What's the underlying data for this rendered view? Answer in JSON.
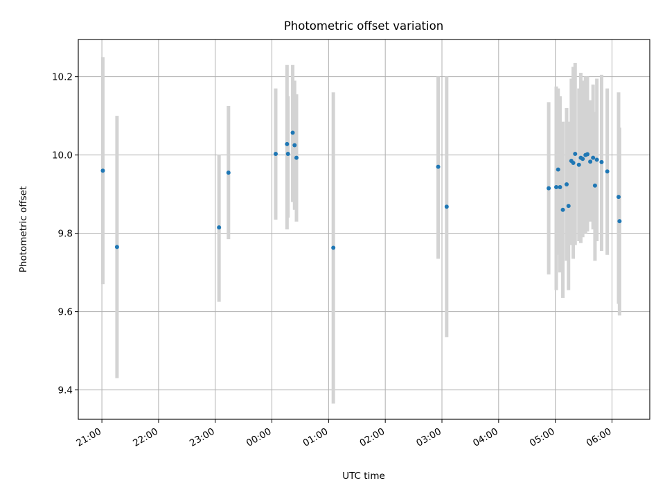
{
  "chart_data": {
    "type": "scatter",
    "title": "Photometric offset variation",
    "xlabel": "UTC time",
    "ylabel": "Photometric offset",
    "x_ticks": [
      "21:00",
      "22:00",
      "23:00",
      "00:00",
      "01:00",
      "02:00",
      "03:00",
      "04:00",
      "05:00",
      "06:00"
    ],
    "y_ticks": [
      "9.4",
      "9.6",
      "9.8",
      "10.0",
      "10.2"
    ],
    "xlim": [
      "20:35",
      "06:40"
    ],
    "ylim": [
      9.325,
      10.295
    ],
    "grid": true,
    "colors": {
      "point": "#1f77b4",
      "errorbar": "#d3d3d3",
      "grid": "#b0b0b0"
    },
    "points": [
      {
        "time": "21:01",
        "y": 9.96,
        "err_low": 9.67,
        "err_high": 10.25
      },
      {
        "time": "21:16",
        "y": 9.765,
        "err_low": 9.43,
        "err_high": 10.1
      },
      {
        "time": "23:04",
        "y": 9.815,
        "err_low": 9.625,
        "err_high": 10.0
      },
      {
        "time": "23:14",
        "y": 9.955,
        "err_low": 9.785,
        "err_high": 10.125
      },
      {
        "time": "00:04",
        "y": 10.003,
        "err_low": 9.835,
        "err_high": 10.17
      },
      {
        "time": "00:16",
        "y": 10.028,
        "err_low": 9.81,
        "err_high": 10.23
      },
      {
        "time": "00:17",
        "y": 10.003,
        "err_low": 9.84,
        "err_high": 10.15
      },
      {
        "time": "00:22",
        "y": 10.057,
        "err_low": 9.88,
        "err_high": 10.23
      },
      {
        "time": "00:24",
        "y": 10.025,
        "err_low": 9.86,
        "err_high": 10.19
      },
      {
        "time": "00:26",
        "y": 9.993,
        "err_low": 9.83,
        "err_high": 10.155
      },
      {
        "time": "01:05",
        "y": 9.763,
        "err_low": 9.365,
        "err_high": 10.16
      },
      {
        "time": "02:56",
        "y": 9.97,
        "err_low": 9.735,
        "err_high": 10.2
      },
      {
        "time": "03:05",
        "y": 9.868,
        "err_low": 9.535,
        "err_high": 10.2
      },
      {
        "time": "04:53",
        "y": 9.915,
        "err_low": 9.695,
        "err_high": 10.135
      },
      {
        "time": "05:01",
        "y": 9.918,
        "err_low": 9.655,
        "err_high": 10.175
      },
      {
        "time": "05:03",
        "y": 9.963,
        "err_low": 9.745,
        "err_high": 10.17
      },
      {
        "time": "05:05",
        "y": 9.918,
        "err_low": 9.7,
        "err_high": 10.15
      },
      {
        "time": "05:08",
        "y": 9.86,
        "err_low": 9.635,
        "err_high": 10.085
      },
      {
        "time": "05:12",
        "y": 9.925,
        "err_low": 9.73,
        "err_high": 10.12
      },
      {
        "time": "05:14",
        "y": 9.87,
        "err_low": 9.655,
        "err_high": 10.085
      },
      {
        "time": "05:17",
        "y": 9.985,
        "err_low": 9.77,
        "err_high": 10.195
      },
      {
        "time": "05:19",
        "y": 9.98,
        "err_low": 9.735,
        "err_high": 10.225
      },
      {
        "time": "05:21",
        "y": 10.003,
        "err_low": 9.77,
        "err_high": 10.235
      },
      {
        "time": "05:25",
        "y": 9.975,
        "err_low": 9.78,
        "err_high": 10.17
      },
      {
        "time": "05:27",
        "y": 9.993,
        "err_low": 9.775,
        "err_high": 10.21
      },
      {
        "time": "05:29",
        "y": 9.99,
        "err_low": 9.79,
        "err_high": 10.19
      },
      {
        "time": "05:32",
        "y": 10.0,
        "err_low": 9.8,
        "err_high": 10.2
      },
      {
        "time": "05:34",
        "y": 10.002,
        "err_low": 9.805,
        "err_high": 10.2
      },
      {
        "time": "05:37",
        "y": 9.983,
        "err_low": 9.83,
        "err_high": 10.14
      },
      {
        "time": "05:40",
        "y": 9.993,
        "err_low": 9.81,
        "err_high": 10.18
      },
      {
        "time": "05:42",
        "y": 9.922,
        "err_low": 9.73,
        "err_high": 10.11
      },
      {
        "time": "05:44",
        "y": 9.988,
        "err_low": 9.78,
        "err_high": 10.195
      },
      {
        "time": "05:49",
        "y": 9.982,
        "err_low": 9.755,
        "err_high": 10.205
      },
      {
        "time": "05:55",
        "y": 9.958,
        "err_low": 9.745,
        "err_high": 10.17
      },
      {
        "time": "06:07",
        "y": 9.893,
        "err_low": 9.62,
        "err_high": 10.16
      },
      {
        "time": "06:08",
        "y": 9.831,
        "err_low": 9.59,
        "err_high": 10.07
      }
    ]
  }
}
